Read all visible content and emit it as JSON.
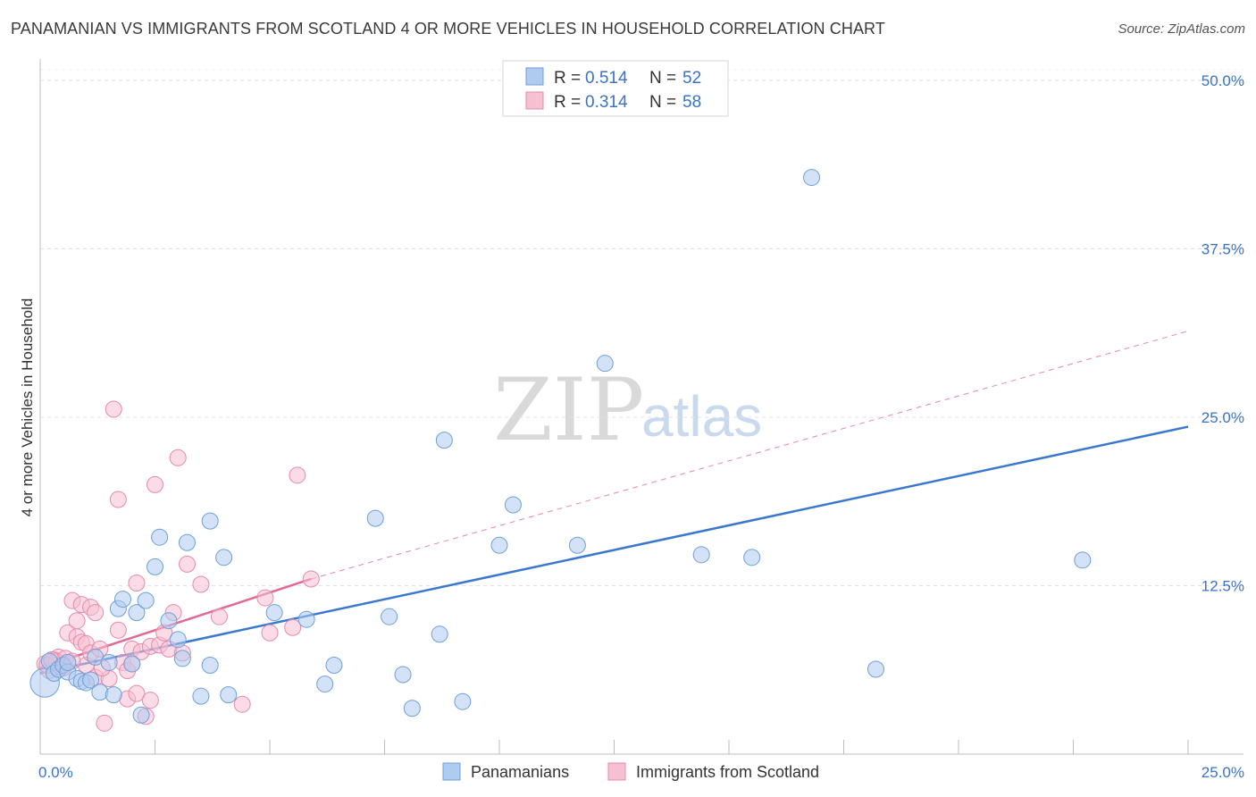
{
  "header": {
    "title": "PANAMANIAN VS IMMIGRANTS FROM SCOTLAND 4 OR MORE VEHICLES IN HOUSEHOLD CORRELATION CHART",
    "source": "Source: ZipAtlas.com"
  },
  "watermark": {
    "zip": "ZIP",
    "atlas": "atlas"
  },
  "legend": {
    "items": [
      {
        "r_label": "R =",
        "r_value": "0.514",
        "n_label": "N =",
        "n_value": "52"
      },
      {
        "r_label": "R =",
        "r_value": "0.314",
        "n_label": "N =",
        "n_value": "58"
      }
    ]
  },
  "chart_data": {
    "type": "scatter",
    "title": "PANAMANIAN VS IMMIGRANTS FROM SCOTLAND 4 OR MORE VEHICLES IN HOUSEHOLD CORRELATION CHART",
    "ylabel": "4 or more Vehicles in Household",
    "xlabel": "",
    "xlim": [
      0,
      25
    ],
    "ylim": [
      0,
      50
    ],
    "x_tick_labels": [
      "0.0%",
      "25.0%"
    ],
    "y_ticks": [
      {
        "value": 12.5,
        "label": "12.5%"
      },
      {
        "value": 25,
        "label": "25.0%"
      },
      {
        "value": 37.5,
        "label": "37.5%"
      },
      {
        "value": 50,
        "label": "50.0%"
      }
    ],
    "colors": {
      "panamanians_fill": "#aecbf0",
      "panamanians_stroke": "#6f9fd8",
      "panamanians_line": "#3a78d0",
      "scotland_fill": "#f7c0d2",
      "scotland_stroke": "#e58aaa",
      "scotland_line": "#e06a94"
    },
    "series": [
      {
        "name": "Panamanians",
        "r": 0.514,
        "n": 52,
        "trend": {
          "x": [
            0,
            25
          ],
          "y": [
            6.0,
            24.3
          ],
          "style": "solid"
        },
        "points": [
          [
            0.1,
            5.3,
            1.8
          ],
          [
            0.2,
            6.9,
            1
          ],
          [
            0.3,
            6.0,
            1
          ],
          [
            0.4,
            6.3,
            1
          ],
          [
            0.5,
            6.6,
            1
          ],
          [
            0.6,
            6.1,
            1
          ],
          [
            0.8,
            5.6,
            1
          ],
          [
            0.9,
            5.4,
            1
          ],
          [
            1.0,
            5.3,
            1
          ],
          [
            1.1,
            5.5,
            1
          ],
          [
            1.2,
            7.2,
            1
          ],
          [
            1.3,
            4.6,
            1
          ],
          [
            1.6,
            4.4,
            1
          ],
          [
            1.7,
            10.8,
            1
          ],
          [
            1.8,
            11.5,
            1
          ],
          [
            2.0,
            6.7,
            1
          ],
          [
            2.1,
            10.5,
            1
          ],
          [
            2.2,
            2.9,
            1
          ],
          [
            2.3,
            11.4,
            1
          ],
          [
            2.5,
            13.9,
            1
          ],
          [
            2.6,
            16.1,
            1
          ],
          [
            2.8,
            9.9,
            1
          ],
          [
            3.0,
            8.5,
            1
          ],
          [
            3.1,
            7.1,
            1
          ],
          [
            3.2,
            15.7,
            1
          ],
          [
            3.5,
            4.3,
            1
          ],
          [
            3.7,
            17.3,
            1
          ],
          [
            3.7,
            6.6,
            1
          ],
          [
            4.0,
            14.6,
            1
          ],
          [
            4.1,
            4.4,
            1
          ],
          [
            5.1,
            10.5,
            1
          ],
          [
            5.8,
            10.0,
            1
          ],
          [
            6.2,
            5.2,
            1
          ],
          [
            6.4,
            6.6,
            1
          ],
          [
            7.3,
            17.5,
            1
          ],
          [
            7.6,
            10.2,
            1
          ],
          [
            7.9,
            5.9,
            1
          ],
          [
            8.1,
            3.4,
            1
          ],
          [
            8.7,
            8.9,
            1
          ],
          [
            8.8,
            23.3,
            1
          ],
          [
            9.2,
            3.9,
            1
          ],
          [
            10.0,
            15.5,
            1
          ],
          [
            10.3,
            18.5,
            1
          ],
          [
            11.7,
            15.5,
            1
          ],
          [
            12.3,
            29.0,
            1
          ],
          [
            14.4,
            14.8,
            1
          ],
          [
            15.5,
            14.6,
            1
          ],
          [
            16.8,
            42.8,
            1
          ],
          [
            18.2,
            6.3,
            1
          ],
          [
            22.7,
            14.4,
            1
          ],
          [
            0.6,
            6.8,
            1
          ],
          [
            1.5,
            6.8,
            1
          ]
        ]
      },
      {
        "name": "Immigrants from Scotland",
        "r": 0.314,
        "n": 58,
        "trend": {
          "x": [
            0,
            5.9
          ],
          "y": [
            6.4,
            13.0
          ],
          "style": "solid",
          "extended": {
            "x": [
              5.9,
              25
            ],
            "y": [
              13.0,
              31.4
            ],
            "style": "dashed"
          }
        },
        "points": [
          [
            0.1,
            6.7,
            1
          ],
          [
            0.2,
            6.2,
            1
          ],
          [
            0.3,
            7.0,
            1
          ],
          [
            0.4,
            7.2,
            1
          ],
          [
            0.5,
            6.4,
            1
          ],
          [
            0.6,
            6.8,
            1
          ],
          [
            0.6,
            9.0,
            1
          ],
          [
            0.7,
            11.4,
            1
          ],
          [
            0.8,
            8.7,
            1
          ],
          [
            0.8,
            9.9,
            1
          ],
          [
            0.9,
            11.1,
            1
          ],
          [
            0.9,
            8.3,
            1
          ],
          [
            1.0,
            6.6,
            1
          ],
          [
            1.0,
            8.2,
            1
          ],
          [
            1.1,
            10.9,
            1
          ],
          [
            1.1,
            7.5,
            1
          ],
          [
            1.2,
            10.5,
            1
          ],
          [
            1.2,
            5.7,
            1
          ],
          [
            1.3,
            7.8,
            1
          ],
          [
            1.4,
            2.3,
            1
          ],
          [
            1.5,
            5.6,
            1
          ],
          [
            1.6,
            25.6,
            1
          ],
          [
            1.7,
            9.2,
            1
          ],
          [
            1.7,
            18.9,
            1
          ],
          [
            1.8,
            6.8,
            1
          ],
          [
            1.9,
            6.2,
            1
          ],
          [
            1.9,
            4.1,
            1
          ],
          [
            2.0,
            7.8,
            1
          ],
          [
            2.0,
            6.7,
            1
          ],
          [
            2.1,
            4.5,
            1
          ],
          [
            2.1,
            12.7,
            1
          ],
          [
            2.2,
            7.6,
            1
          ],
          [
            2.3,
            2.8,
            1
          ],
          [
            2.4,
            8.0,
            1
          ],
          [
            2.4,
            4.0,
            1
          ],
          [
            2.5,
            20.0,
            1
          ],
          [
            2.6,
            8.1,
            1
          ],
          [
            2.7,
            9.0,
            1
          ],
          [
            2.8,
            7.8,
            1
          ],
          [
            3.0,
            22.0,
            1
          ],
          [
            3.1,
            7.5,
            1
          ],
          [
            3.2,
            14.1,
            1
          ],
          [
            3.5,
            12.6,
            1
          ],
          [
            3.9,
            10.2,
            1
          ],
          [
            4.4,
            3.7,
            1
          ],
          [
            4.9,
            11.6,
            1
          ],
          [
            5.0,
            9.0,
            1
          ],
          [
            5.5,
            9.4,
            1
          ],
          [
            5.6,
            20.7,
            1
          ],
          [
            5.9,
            13.0,
            1
          ],
          [
            0.15,
            6.6,
            1
          ],
          [
            0.35,
            6.9,
            1
          ],
          [
            0.45,
            6.5,
            1
          ],
          [
            0.55,
            7.1,
            1
          ],
          [
            0.25,
            7.0,
            1
          ],
          [
            0.7,
            6.9,
            1
          ],
          [
            1.35,
            6.4,
            1
          ],
          [
            2.9,
            10.5,
            1
          ]
        ]
      }
    ]
  },
  "bottom_legend": {
    "items": [
      {
        "label": "Panamanians"
      },
      {
        "label": "Immigrants from Scotland"
      }
    ]
  }
}
